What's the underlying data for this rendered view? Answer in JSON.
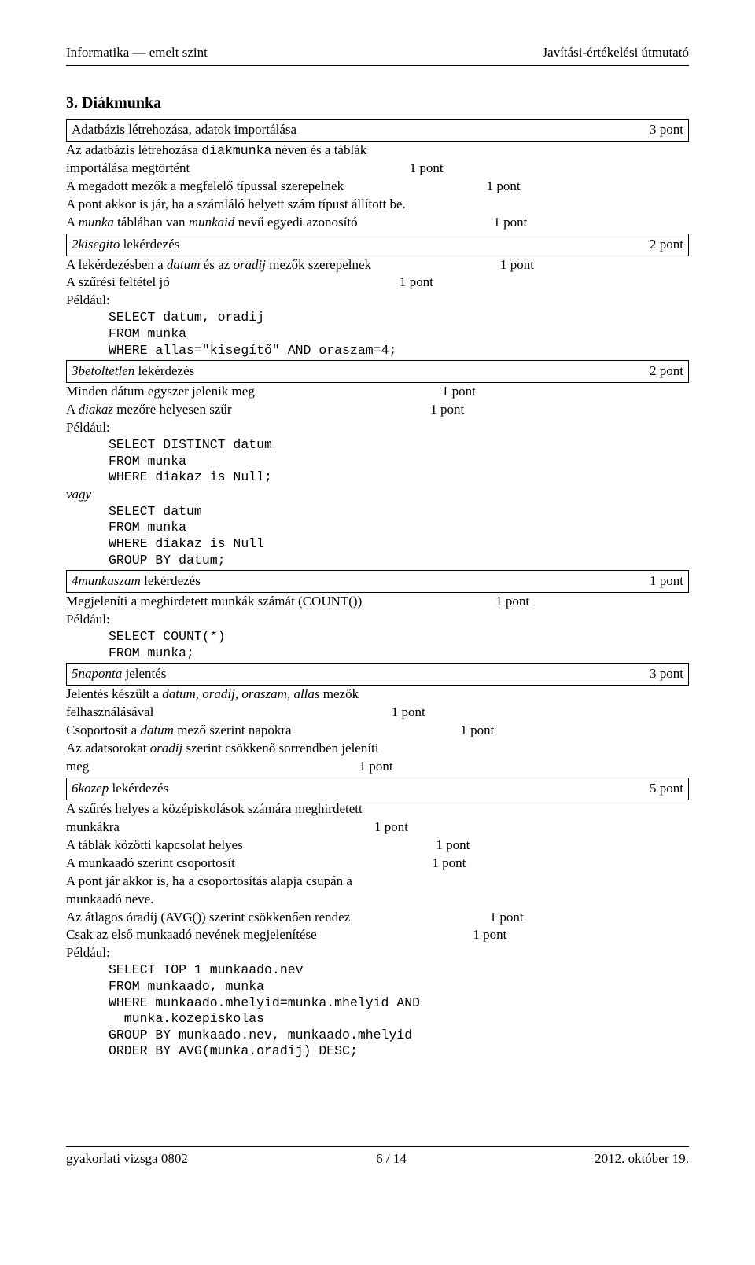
{
  "header": {
    "left": "Informatika — emelt szint",
    "right": "Javítási-értékelési útmutató"
  },
  "section_title": "3. Diákmunka",
  "blocks": [
    {
      "type": "boxed",
      "left_html": "Adatbázis létrehozása, adatok importálása",
      "right": "3 pont"
    },
    {
      "type": "row",
      "left_html": "Az adatbázis létrehozása <span class='mono'>diakmunka</span> néven és a táblák",
      "mid": "",
      "right": ""
    },
    {
      "type": "row",
      "left_html": "importálása megtörtént",
      "mid": "1 pont",
      "right": ""
    },
    {
      "type": "row",
      "left_html": "A megadott mezők a megfelelő típussal szerepelnek",
      "mid": "1 pont",
      "right": ""
    },
    {
      "type": "row",
      "left_html": "A pont akkor is jár, ha a számláló helyett szám típust állított be.",
      "mid": "",
      "right": ""
    },
    {
      "type": "row",
      "left_html": "A <span class='italic'>munka</span> táblában van <span class='italic'>munkaid</span> nevű egyedi azonosító",
      "mid": "1 pont",
      "right": ""
    },
    {
      "type": "boxed",
      "left_html": "<span class='italic'>2kisegito</span> lekérdezés",
      "right": "2 pont"
    },
    {
      "type": "row",
      "left_html": "A lekérdezésben a <span class='italic'>datum</span> és az <span class='italic'>oradij</span> mezők szerepelnek",
      "mid": "1 pont",
      "right": ""
    },
    {
      "type": "row",
      "left_html": "A szűrési feltétel jó",
      "mid": "1 pont",
      "right": ""
    },
    {
      "type": "peldaul",
      "text": "Például:"
    },
    {
      "type": "code",
      "text": "SELECT datum, oradij\nFROM munka\nWHERE allas=\"kisegítő\" AND oraszam=4;"
    },
    {
      "type": "boxed",
      "left_html": "<span class='italic'>3betoltetlen</span> lekérdezés",
      "right": "2 pont"
    },
    {
      "type": "row",
      "left_html": "Minden dátum egyszer jelenik meg",
      "mid": "1 pont",
      "right": ""
    },
    {
      "type": "row",
      "left_html": "A <span class='italic'>diakaz</span> mezőre helyesen szűr",
      "mid": "1 pont",
      "right": ""
    },
    {
      "type": "peldaul",
      "text": "Például:"
    },
    {
      "type": "code",
      "text": "SELECT DISTINCT datum\nFROM munka\nWHERE diakaz is Null;"
    },
    {
      "type": "vagy",
      "text": "vagy"
    },
    {
      "type": "code",
      "text": "SELECT datum\nFROM munka\nWHERE diakaz is Null\nGROUP BY datum;"
    },
    {
      "type": "boxed",
      "left_html": "<span class='italic'>4munkaszam</span> lekérdezés",
      "right": "1 pont"
    },
    {
      "type": "row",
      "left_html": "Megjeleníti a meghirdetett munkák számát (COUNT())",
      "mid": "1 pont",
      "right": ""
    },
    {
      "type": "peldaul",
      "text": "Például:"
    },
    {
      "type": "code",
      "text": "SELECT COUNT(*)\nFROM munka;"
    },
    {
      "type": "boxed",
      "left_html": "<span class='italic'>5naponta</span> jelentés",
      "right": "3 pont"
    },
    {
      "type": "row",
      "left_html": "Jelentés készült a <span class='italic'>datum</span>, <span class='italic'>oradij</span>, <span class='italic'>oraszam</span>, <span class='italic'>allas</span> mezők",
      "mid": "",
      "right": ""
    },
    {
      "type": "row",
      "left_html": "felhasználásával",
      "mid": "1 pont",
      "right": ""
    },
    {
      "type": "row",
      "left_html": "Csoportosít a <span class='italic'>datum</span> mező szerint napokra",
      "mid": "1 pont",
      "right": ""
    },
    {
      "type": "row",
      "left_html": "Az adatsorokat <span class='italic'>oradij</span> szerint csökkenő sorrendben jeleníti",
      "mid": "",
      "right": ""
    },
    {
      "type": "row",
      "left_html": "meg",
      "mid": "1 pont",
      "right": ""
    },
    {
      "type": "boxed",
      "left_html": "<span class='italic'>6kozep</span> lekérdezés",
      "right": "5 pont"
    },
    {
      "type": "row",
      "left_html": "A szűrés helyes a középiskolások számára meghirdetett",
      "mid": "",
      "right": ""
    },
    {
      "type": "row",
      "left_html": "munkákra",
      "mid": "1 pont",
      "right": ""
    },
    {
      "type": "row",
      "left_html": "A táblák közötti kapcsolat helyes",
      "mid": "1 pont",
      "right": ""
    },
    {
      "type": "row",
      "left_html": "A munkaadó szerint csoportosít",
      "mid": "1 pont",
      "right": ""
    },
    {
      "type": "row",
      "left_html": "A pont jár akkor is, ha a csoportosítás alapja csupán a",
      "mid": "",
      "right": ""
    },
    {
      "type": "row",
      "left_html": "munkaadó neve.",
      "mid": "",
      "right": ""
    },
    {
      "type": "row",
      "left_html": "Az átlagos óradíj (AVG()) szerint csökkenően rendez",
      "mid": "1 pont",
      "right": ""
    },
    {
      "type": "row",
      "left_html": "Csak az első munkaadó nevének megjelenítése",
      "mid": "1 pont",
      "right": ""
    },
    {
      "type": "peldaul",
      "text": "Például:"
    },
    {
      "type": "code",
      "text": "SELECT TOP 1 munkaado.nev\nFROM munkaado, munka\nWHERE munkaado.mhelyid=munka.mhelyid AND\n  munka.kozepiskolas\nGROUP BY munkaado.nev, munkaado.mhelyid\nORDER BY AVG(munka.oradij) DESC;"
    }
  ],
  "footer": {
    "left": "gyakorlati vizsga 0802",
    "center": "6 / 14",
    "right": "2012. október 19."
  }
}
